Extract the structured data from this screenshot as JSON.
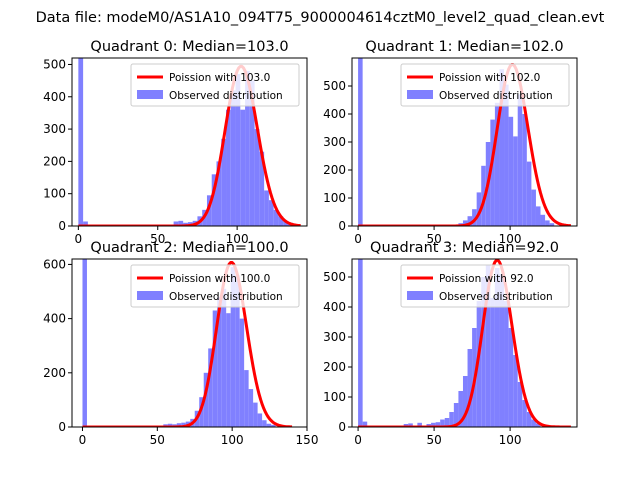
{
  "figure": {
    "suptitle": "Data file: modeM0/AS1A10_094T75_9000004614cztM0_level2_quad_clean.evt"
  },
  "chart_data": [
    {
      "type": "bar",
      "title": "Quadrant 0: Median=103.0",
      "xlim": [
        -4,
        144
      ],
      "ylim": [
        0,
        520
      ],
      "xticks": [
        0,
        50,
        100
      ],
      "yticks": [
        0,
        100,
        200,
        300,
        400,
        500
      ],
      "bin_width": 3,
      "legend": {
        "position": "top-right",
        "line_label": "Poission with 103.0",
        "bar_label": "Observed distribution"
      },
      "poisson_mean": 103.0,
      "poisson_scale": 12,
      "bars": [
        {
          "x": 0,
          "y": 520
        },
        {
          "x": 3,
          "y": 14
        },
        {
          "x": 60,
          "y": 14
        },
        {
          "x": 63,
          "y": 16
        },
        {
          "x": 66,
          "y": 10
        },
        {
          "x": 69,
          "y": 12
        },
        {
          "x": 72,
          "y": 16
        },
        {
          "x": 75,
          "y": 30
        },
        {
          "x": 78,
          "y": 50
        },
        {
          "x": 81,
          "y": 95
        },
        {
          "x": 84,
          "y": 160
        },
        {
          "x": 87,
          "y": 200
        },
        {
          "x": 90,
          "y": 270
        },
        {
          "x": 93,
          "y": 360
        },
        {
          "x": 96,
          "y": 420
        },
        {
          "x": 99,
          "y": 470
        },
        {
          "x": 102,
          "y": 360
        },
        {
          "x": 105,
          "y": 480
        },
        {
          "x": 108,
          "y": 450
        },
        {
          "x": 111,
          "y": 300
        },
        {
          "x": 114,
          "y": 230
        },
        {
          "x": 117,
          "y": 110
        },
        {
          "x": 120,
          "y": 80
        },
        {
          "x": 123,
          "y": 50
        },
        {
          "x": 126,
          "y": 30
        },
        {
          "x": 129,
          "y": 15
        },
        {
          "x": 132,
          "y": 10
        }
      ]
    },
    {
      "type": "bar",
      "title": "Quadrant 1: Median=102.0",
      "xlim": [
        -4,
        144
      ],
      "ylim": [
        0,
        600
      ],
      "xticks": [
        0,
        50,
        100
      ],
      "yticks": [
        0,
        100,
        200,
        300,
        400,
        500
      ],
      "bin_width": 3,
      "legend": {
        "position": "top-right",
        "line_label": "Poission with 102.0",
        "bar_label": "Observed distribution"
      },
      "poisson_mean": 102.0,
      "poisson_scale": 14.7,
      "bars": [
        {
          "x": 0,
          "y": 600
        },
        {
          "x": 3,
          "y": 5
        },
        {
          "x": 66,
          "y": 10
        },
        {
          "x": 69,
          "y": 20
        },
        {
          "x": 72,
          "y": 35
        },
        {
          "x": 75,
          "y": 60
        },
        {
          "x": 78,
          "y": 120
        },
        {
          "x": 81,
          "y": 215
        },
        {
          "x": 84,
          "y": 300
        },
        {
          "x": 87,
          "y": 380
        },
        {
          "x": 90,
          "y": 440
        },
        {
          "x": 93,
          "y": 560
        },
        {
          "x": 96,
          "y": 505
        },
        {
          "x": 99,
          "y": 390
        },
        {
          "x": 102,
          "y": 320
        },
        {
          "x": 105,
          "y": 470
        },
        {
          "x": 108,
          "y": 400
        },
        {
          "x": 111,
          "y": 230
        },
        {
          "x": 114,
          "y": 130
        },
        {
          "x": 117,
          "y": 70
        },
        {
          "x": 120,
          "y": 40
        },
        {
          "x": 123,
          "y": 20
        },
        {
          "x": 126,
          "y": 10
        }
      ]
    },
    {
      "type": "bar",
      "title": "Quadrant 2: Median=100.0",
      "xlim": [
        -7,
        150
      ],
      "ylim": [
        0,
        620
      ],
      "xticks": [
        0,
        50,
        100,
        150
      ],
      "yticks": [
        0,
        200,
        400,
        600
      ],
      "bin_width": 3,
      "legend": {
        "position": "top-right",
        "line_label": "Poission with 100.0",
        "bar_label": "Observed distribution"
      },
      "poisson_mean": 100.0,
      "poisson_scale": 15,
      "bars": [
        {
          "x": 0,
          "y": 620
        },
        {
          "x": 3,
          "y": 5
        },
        {
          "x": 54,
          "y": 10
        },
        {
          "x": 57,
          "y": 12
        },
        {
          "x": 60,
          "y": 10
        },
        {
          "x": 63,
          "y": 14
        },
        {
          "x": 66,
          "y": 16
        },
        {
          "x": 69,
          "y": 20
        },
        {
          "x": 72,
          "y": 30
        },
        {
          "x": 75,
          "y": 60
        },
        {
          "x": 78,
          "y": 110
        },
        {
          "x": 81,
          "y": 200
        },
        {
          "x": 84,
          "y": 290
        },
        {
          "x": 87,
          "y": 430
        },
        {
          "x": 90,
          "y": 480
        },
        {
          "x": 93,
          "y": 510
        },
        {
          "x": 96,
          "y": 420
        },
        {
          "x": 99,
          "y": 590
        },
        {
          "x": 102,
          "y": 560
        },
        {
          "x": 105,
          "y": 400
        },
        {
          "x": 108,
          "y": 210
        },
        {
          "x": 111,
          "y": 140
        },
        {
          "x": 114,
          "y": 90
        },
        {
          "x": 117,
          "y": 50
        },
        {
          "x": 120,
          "y": 25
        },
        {
          "x": 123,
          "y": 12
        },
        {
          "x": 126,
          "y": 8
        }
      ]
    },
    {
      "type": "bar",
      "title": "Quadrant 3: Median=92.0",
      "xlim": [
        -4,
        144
      ],
      "ylim": [
        0,
        560
      ],
      "xticks": [
        0,
        50,
        100
      ],
      "yticks": [
        0,
        100,
        200,
        300,
        400,
        500
      ],
      "bin_width": 3,
      "legend": {
        "position": "top-right",
        "line_label": "Poission with 92.0",
        "bar_label": "Observed distribution"
      },
      "poisson_mean": 92.0,
      "poisson_scale": 13.6,
      "bars": [
        {
          "x": 0,
          "y": 560
        },
        {
          "x": 3,
          "y": 18
        },
        {
          "x": 30,
          "y": 10
        },
        {
          "x": 33,
          "y": 12
        },
        {
          "x": 39,
          "y": 14
        },
        {
          "x": 45,
          "y": 10
        },
        {
          "x": 48,
          "y": 14
        },
        {
          "x": 51,
          "y": 16
        },
        {
          "x": 54,
          "y": 25
        },
        {
          "x": 57,
          "y": 30
        },
        {
          "x": 60,
          "y": 50
        },
        {
          "x": 63,
          "y": 80
        },
        {
          "x": 66,
          "y": 120
        },
        {
          "x": 69,
          "y": 170
        },
        {
          "x": 72,
          "y": 260
        },
        {
          "x": 75,
          "y": 330
        },
        {
          "x": 78,
          "y": 420
        },
        {
          "x": 81,
          "y": 500
        },
        {
          "x": 84,
          "y": 540
        },
        {
          "x": 87,
          "y": 430
        },
        {
          "x": 90,
          "y": 530
        },
        {
          "x": 93,
          "y": 510
        },
        {
          "x": 96,
          "y": 420
        },
        {
          "x": 99,
          "y": 330
        },
        {
          "x": 102,
          "y": 240
        },
        {
          "x": 105,
          "y": 150
        },
        {
          "x": 108,
          "y": 90
        },
        {
          "x": 111,
          "y": 50
        },
        {
          "x": 114,
          "y": 25
        },
        {
          "x": 117,
          "y": 12
        }
      ]
    }
  ],
  "colors": {
    "bars": "#8080ff",
    "poisson_line": "#ff0000",
    "axes": "#000000",
    "legend_border": "#cccccc"
  }
}
